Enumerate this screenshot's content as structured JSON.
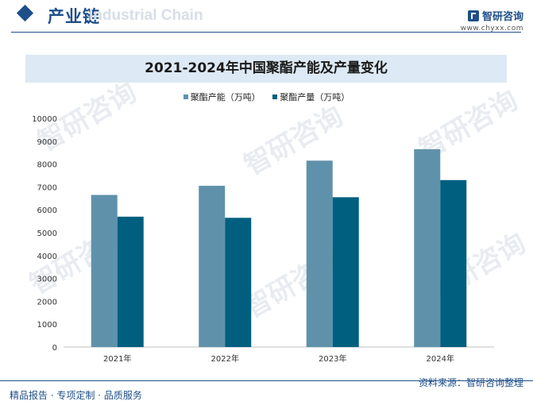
{
  "header": {
    "section_title": "产业链",
    "watermark_text": "Industrial Chain",
    "brand_name": "智研咨询",
    "brand_url": "www.chyxx.com"
  },
  "watermark_glyphs": "智研咨询",
  "colors": {
    "capacity": "#5f92aa",
    "output": "#005f7f",
    "brand": "#1e4f8a",
    "title_bg": "#dde9f4"
  },
  "chart_data": {
    "type": "bar",
    "title": "2021-2024年中国聚酯产能及产量变化",
    "categories": [
      "2021年",
      "2022年",
      "2023年",
      "2024年"
    ],
    "series": [
      {
        "name": "聚酯产能（万吨）",
        "values": [
          6650,
          7050,
          8150,
          8650
        ]
      },
      {
        "name": "聚酯产量（万吨）",
        "values": [
          5700,
          5650,
          6550,
          7300
        ]
      }
    ],
    "ylim": [
      0,
      10000
    ],
    "yticks": [
      0,
      1000,
      2000,
      3000,
      4000,
      5000,
      6000,
      7000,
      8000,
      9000,
      10000
    ],
    "grid": false,
    "legend": "top-center"
  },
  "footer": {
    "left": "精品报告 · 专项定制 · 品质服务",
    "right": "资料来源：智研咨询整理"
  }
}
